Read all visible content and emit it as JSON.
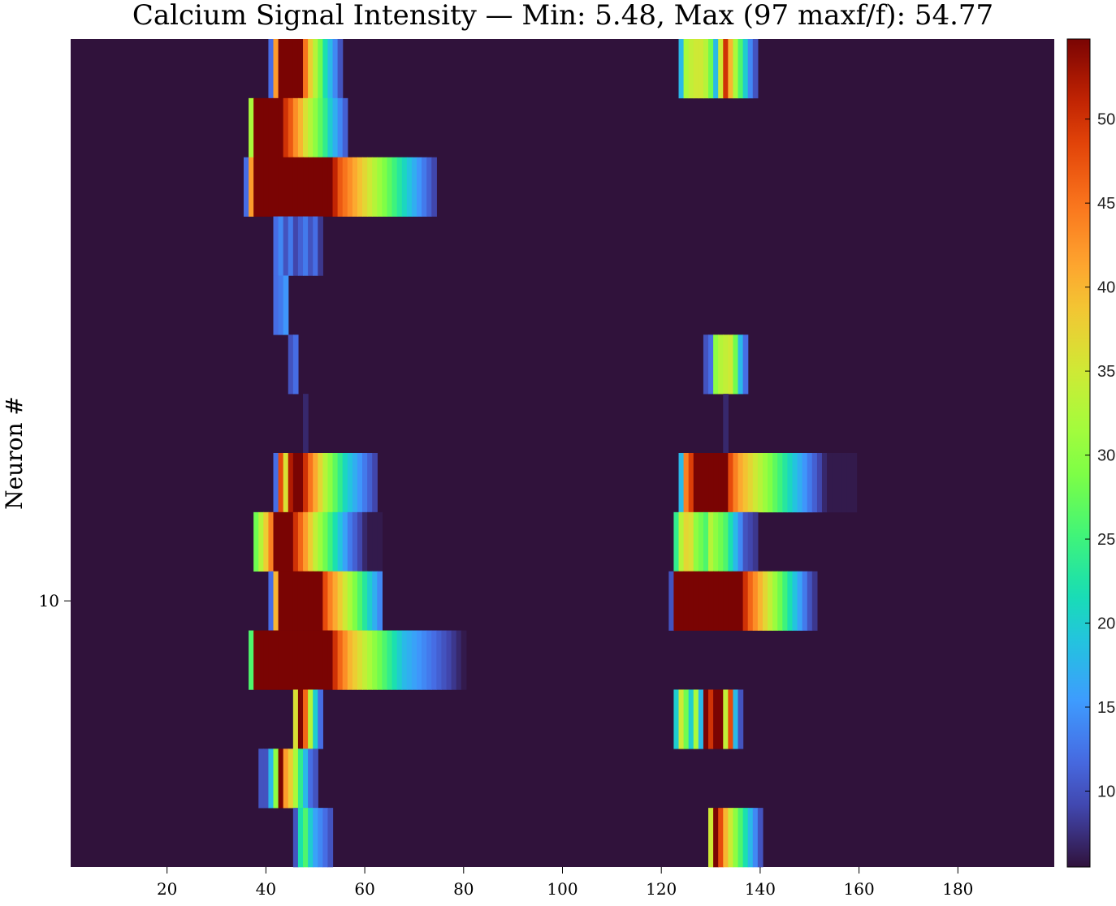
{
  "chart_data": {
    "type": "heatmap",
    "title": "Calcium Signal Intensity — Min: 5.48, Max (97 maxf/f): 54.77",
    "xlabel": "",
    "ylabel": "Neuron #",
    "colormap": "turbo",
    "xlim": [
      0.5,
      199.5
    ],
    "ylim": [
      0.5,
      14.5
    ],
    "y_direction": "reverse",
    "clim": [
      5.48,
      54.77
    ],
    "background_value": 5.48,
    "x_ticks": [
      20,
      40,
      60,
      80,
      100,
      120,
      140,
      160,
      180
    ],
    "y_ticks": [
      10
    ],
    "colorbar_ticks": [
      10,
      15,
      20,
      25,
      30,
      35,
      40,
      45,
      50
    ],
    "rows": [
      {
        "neuron": 1,
        "segments": [
          {
            "start": 41,
            "values": [
              12,
              42,
              54.77,
              54.77,
              54.77,
              54.77,
              54.77,
              45,
              38,
              33,
              28,
              22,
              18,
              14,
              10
            ]
          },
          {
            "start": 124,
            "values": [
              18,
              32,
              34,
              35,
              35,
              33,
              28,
              18,
              35,
              50,
              40,
              32,
              26,
              20,
              14,
              10
            ]
          }
        ]
      },
      {
        "neuron": 2,
        "segments": [
          {
            "start": 37,
            "values": [
              32,
              54.77,
              54.77,
              54.77,
              54.77,
              54.77,
              54.77,
              50,
              47,
              43,
              40,
              36,
              33,
              30,
              27,
              24,
              20,
              17,
              14,
              11
            ]
          }
        ]
      },
      {
        "neuron": 3,
        "segments": [
          {
            "start": 36,
            "values": [
              12,
              42,
              54.77,
              54.77,
              54.77,
              54.77,
              54.77,
              54.77,
              54.77,
              54.77,
              54.77,
              54.77,
              54.77,
              54.77,
              54.77,
              54.77,
              54.77,
              54.77,
              51,
              47,
              45,
              43,
              41,
              39,
              37,
              35,
              33,
              31,
              29,
              27,
              25,
              23,
              21,
              19,
              17,
              15,
              13,
              11,
              9
            ]
          }
        ]
      },
      {
        "neuron": 4,
        "segments": [
          {
            "start": 42,
            "values": [
              12,
              14,
              10,
              13,
              9,
              11,
              13,
              10,
              12,
              8
            ]
          }
        ]
      },
      {
        "neuron": 5,
        "segments": [
          {
            "start": 42,
            "values": [
              12,
              13,
              15
            ]
          }
        ]
      },
      {
        "neuron": 6,
        "segments": [
          {
            "start": 45,
            "values": [
              10,
              12
            ]
          },
          {
            "start": 129,
            "values": [
              10,
              12,
              30,
              33,
              34,
              35,
              28,
              18,
              12
            ]
          }
        ]
      },
      {
        "neuron": 7,
        "segments": [
          {
            "start": 48,
            "values": [
              7
            ]
          },
          {
            "start": 133,
            "values": [
              7
            ]
          }
        ]
      },
      {
        "neuron": 8,
        "segments": [
          {
            "start": 42,
            "values": [
              12,
              48,
              36,
              52,
              54.77,
              54.77,
              50,
              45,
              41,
              37,
              33,
              30,
              27,
              24,
              21,
              19,
              17,
              15,
              13,
              11,
              9
            ]
          },
          {
            "start": 124,
            "values": [
              18,
              44,
              49,
              54.77,
              54.77,
              54.77,
              54.77,
              54.77,
              54.77,
              54.77,
              48,
              44,
              41,
              39,
              37,
              35,
              33,
              31,
              29,
              27,
              25,
              23,
              21,
              19,
              17,
              15,
              13,
              11,
              9,
              7,
              6,
              6,
              6,
              6,
              6,
              6
            ]
          }
        ]
      },
      {
        "neuron": 9,
        "segments": [
          {
            "start": 38,
            "values": [
              28,
              33,
              38,
              44,
              54.77,
              54.77,
              54.77,
              54.77,
              50,
              46,
              42,
              38,
              34,
              31,
              28,
              25,
              22,
              19,
              16,
              13,
              11,
              9,
              7,
              6,
              6,
              6
            ]
          },
          {
            "start": 123,
            "values": [
              24,
              33,
              37,
              36,
              30,
              28,
              26,
              33,
              30,
              28,
              26,
              22,
              18,
              14,
              10,
              9,
              8
            ]
          }
        ]
      },
      {
        "neuron": 10,
        "segments": [
          {
            "start": 41,
            "values": [
              12,
              40,
              54.77,
              54.77,
              54.77,
              54.77,
              54.77,
              54.77,
              54.77,
              54.77,
              54.77,
              48,
              44,
              41,
              38,
              35,
              32,
              29,
              26,
              23,
              20,
              17,
              14
            ]
          },
          {
            "start": 122,
            "values": [
              10,
              54.77,
              54.77,
              54.77,
              54.77,
              54.77,
              54.77,
              54.77,
              54.77,
              54.77,
              54.77,
              54.77,
              54.77,
              54.77,
              54.77,
              50,
              46,
              43,
              40,
              37,
              34,
              31,
              28,
              25,
              22,
              19,
              16,
              13,
              10,
              8
            ]
          }
        ]
      },
      {
        "neuron": 11,
        "segments": [
          {
            "start": 37,
            "values": [
              26,
              54.77,
              54.77,
              54.77,
              54.77,
              54.77,
              54.77,
              54.77,
              54.77,
              54.77,
              54.77,
              54.77,
              54.77,
              54.77,
              54.77,
              54.77,
              54.77,
              50,
              46,
              43,
              40,
              38,
              36,
              34,
              32,
              30,
              28,
              26,
              24,
              22,
              20,
              18,
              17,
              16,
              15,
              14,
              13,
              12,
              11,
              10,
              9,
              8,
              7,
              6
            ]
          }
        ]
      },
      {
        "neuron": 12,
        "segments": [
          {
            "start": 46,
            "values": [
              36,
              54.77,
              46,
              33,
              20,
              12
            ]
          },
          {
            "start": 123,
            "values": [
              20,
              35,
              28,
              20,
              32,
              18,
              54.77,
              50,
              54.77,
              54.77,
              34,
              48,
              18,
              10
            ]
          }
        ]
      },
      {
        "neuron": 13,
        "segments": [
          {
            "start": 39,
            "values": [
              10,
              10,
              18,
              30,
              54.77,
              42,
              38,
              32,
              24,
              18,
              12,
              10
            ]
          }
        ]
      },
      {
        "neuron": 14,
        "segments": [
          {
            "start": 46,
            "values": [
              10,
              22,
              26,
              20,
              16,
              14,
              12,
              10
            ]
          },
          {
            "start": 130,
            "values": [
              35,
              54.77,
              48,
              40,
              35,
              30,
              26,
              22,
              18,
              14,
              10
            ]
          }
        ]
      }
    ]
  }
}
